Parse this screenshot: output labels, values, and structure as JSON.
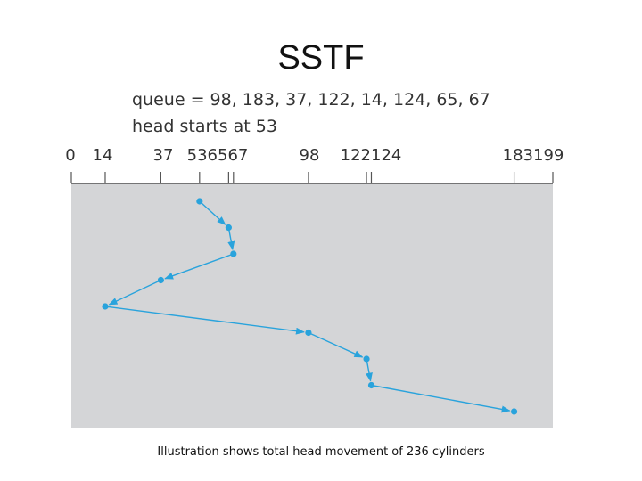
{
  "title": "SSTF",
  "queue_label": "queue = 98, 183, 37, 122, 14, 124, 65, 67",
  "head_label": "head starts at 53",
  "caption": "Illustration shows total head movement of 236 cylinders",
  "axis": {
    "min": 0,
    "max": 199,
    "tick_labels": [
      "0",
      "14",
      "37",
      "536567",
      "98",
      "122124",
      "183199"
    ],
    "tick_values": [
      0,
      14,
      37,
      53,
      65,
      67,
      98,
      122,
      124,
      183,
      199
    ]
  },
  "service_order": [
    53,
    65,
    67,
    37,
    14,
    98,
    122,
    124,
    183
  ],
  "colors": {
    "path": "#29a3dc",
    "panel": "#d4d5d7",
    "axis": "#555555"
  }
}
